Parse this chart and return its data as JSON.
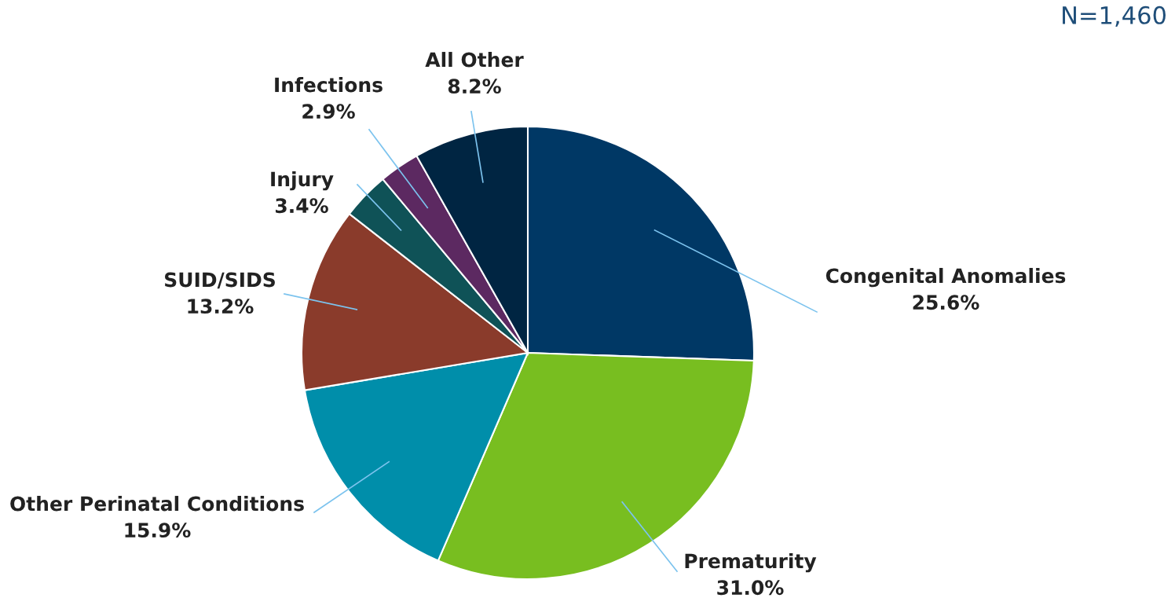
{
  "chart_data": {
    "type": "pie",
    "categories": [
      "Congenital Anomalies",
      "Prematurity",
      "Other Perinatal Conditions",
      "SUID/SIDS",
      "Injury",
      "Infections",
      "All Other"
    ],
    "values": [
      25.6,
      31.0,
      15.9,
      13.2,
      3.4,
      2.9,
      8.2
    ],
    "value_labels": [
      "25.6%",
      "31.0%",
      "15.9%",
      "13.2%",
      "3.4%",
      "2.9%",
      "8.2%"
    ],
    "colors": [
      "#003865",
      "#78be20",
      "#008eaa",
      "#8a3b2b",
      "#0f5257",
      "#5c2961",
      "#002542"
    ],
    "annotations": [
      "N=1,460"
    ],
    "legend": false
  }
}
